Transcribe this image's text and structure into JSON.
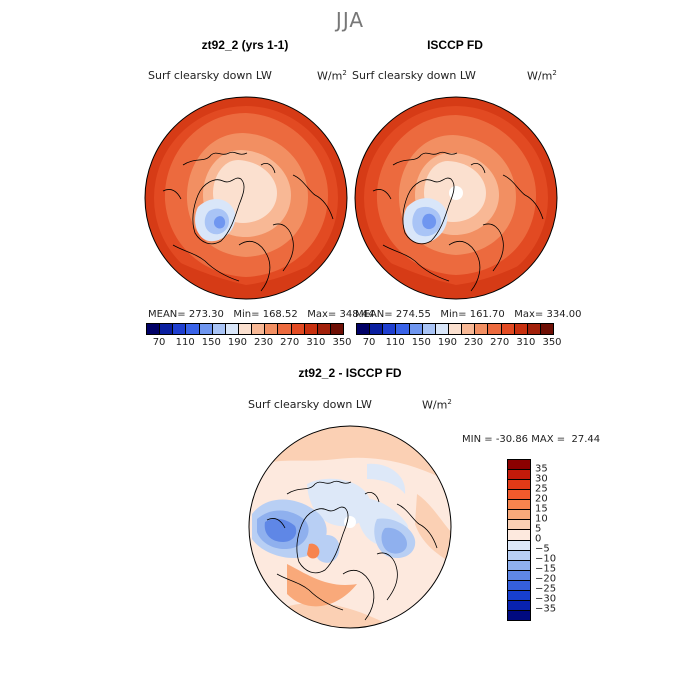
{
  "season": "JJA",
  "panels": [
    {
      "title": "zt92_2 (yrs 1-1)",
      "variable": "Surf clearsky down LW",
      "units_base": "W/m",
      "units_exp": "2",
      "mean_label": "MEAN=",
      "mean": "273.30",
      "min_label": "Min=",
      "min": "168.52",
      "max_label": "Max=",
      "max": "348.44"
    },
    {
      "title": "ISCCP FD",
      "variable": "Surf clearsky down LW",
      "units_base": "W/m",
      "units_exp": "2",
      "mean_label": "MEAN=",
      "mean": "274.55",
      "min_label": "Min=",
      "min": "161.70",
      "max_label": "Max=",
      "max": "334.00"
    }
  ],
  "abs_colorbar": {
    "colors": [
      "#000066",
      "#0a1fa0",
      "#1f3fd0",
      "#3a63e8",
      "#6f96f0",
      "#a9c4f6",
      "#d9e6f9",
      "#fbe0cf",
      "#f8b895",
      "#f28f62",
      "#ec6a3e",
      "#e24a22",
      "#c8300f",
      "#a2200a",
      "#6e0f05"
    ],
    "tick_labels": [
      "70",
      "110",
      "150",
      "190",
      "230",
      "270",
      "310",
      "350"
    ]
  },
  "diff_panel": {
    "title": "zt92_2 - ISCCP FD",
    "variable": "Surf clearsky down LW",
    "units_base": "W/m",
    "units_exp": "2",
    "min_label": "MIN =",
    "min": "-30.86",
    "max_label": "MAX =",
    "max": "27.44"
  },
  "diff_colorbar": {
    "colors": [
      "#8b0000",
      "#c41a0a",
      "#e23a17",
      "#f25a2c",
      "#f7844e",
      "#f9a97a",
      "#fbd0b4",
      "#fde9de",
      "#dde8f8",
      "#b8cff4",
      "#8fb0ee",
      "#5f87e6",
      "#355fdc",
      "#173fcf",
      "#0822b0",
      "#000a80"
    ],
    "tick_labels": [
      "35",
      "30",
      "25",
      "20",
      "15",
      "10",
      "5",
      "0",
      "−5",
      "−10",
      "−15",
      "−20",
      "−25",
      "−30",
      "−35"
    ]
  }
}
